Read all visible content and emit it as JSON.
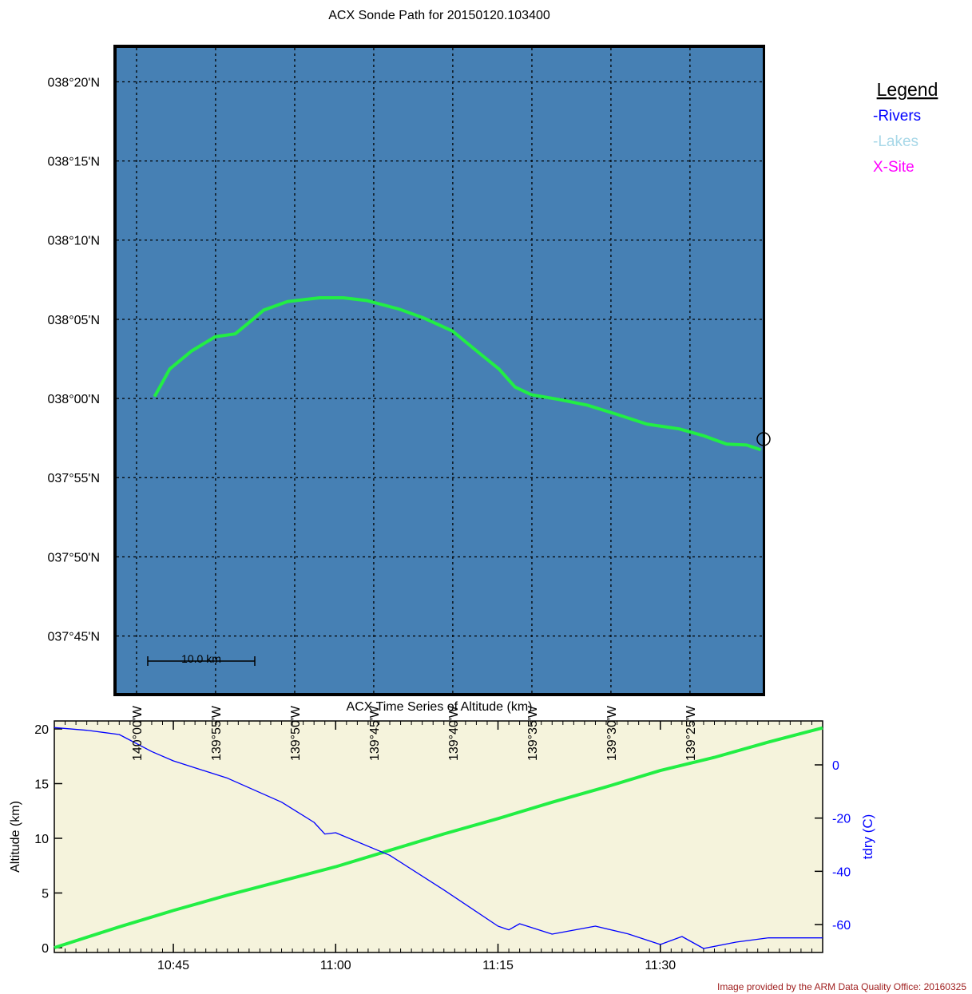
{
  "chart_data": [
    {
      "type": "map",
      "title": "ACX Sonde Path for 20150120.103400",
      "x": [
        -139.981,
        -139.965,
        -139.942,
        -139.917,
        -139.896,
        -139.879,
        -139.866,
        -139.841,
        -139.807,
        -139.782,
        -139.757,
        -139.723,
        -139.698,
        -139.667,
        -139.639,
        -139.618,
        -139.601,
        -139.584,
        -139.555,
        -139.525,
        -139.496,
        -139.462,
        -139.428,
        -139.403,
        -139.378,
        -139.357,
        -139.342
      ],
      "values": [
        38.002,
        38.031,
        38.05,
        38.065,
        38.068,
        38.082,
        38.093,
        38.102,
        38.106,
        38.106,
        38.103,
        38.094,
        38.085,
        38.071,
        38.048,
        38.031,
        38.012,
        38.004,
        37.999,
        37.993,
        37.984,
        37.973,
        37.968,
        37.961,
        37.952,
        37.951,
        37.946
      ],
      "color": "#22ee44",
      "background": "#4680b4",
      "grid": true,
      "xlim": [
        -140.021,
        -139.34
      ],
      "ylim": [
        37.69,
        38.369
      ],
      "xticks": [
        {
          "value": -140,
          "label": "140°00'W"
        },
        {
          "value": -139.9167,
          "label": "139°55'W"
        },
        {
          "value": -139.8333,
          "label": "139°50'W"
        },
        {
          "value": -139.75,
          "label": "139°45'W"
        },
        {
          "value": -139.6667,
          "label": "139°40'W"
        },
        {
          "value": -139.5833,
          "label": "139°35'W"
        },
        {
          "value": -139.5,
          "label": "139°30'W"
        },
        {
          "value": -139.4167,
          "label": "139°25'W"
        }
      ],
      "yticks": [
        {
          "value": 38.3333,
          "label": "038°20'N"
        },
        {
          "value": 38.25,
          "label": "038°15'N"
        },
        {
          "value": 38.1667,
          "label": "038°10'N"
        },
        {
          "value": 38.0833,
          "label": "038°05'N"
        },
        {
          "value": 38,
          "label": "038°00'N"
        },
        {
          "value": 37.9167,
          "label": "037°55'N"
        },
        {
          "value": 37.8333,
          "label": "037°50'N"
        },
        {
          "value": 37.75,
          "label": "037°45'N"
        }
      ],
      "scale_label": "10.0 km",
      "legend": {
        "title": "Legend",
        "items": [
          {
            "label": "-Rivers",
            "color": "#0000ff"
          },
          {
            "label": "-Lakes",
            "color": "#a8d8e8"
          },
          {
            "label": "X-Site",
            "color": "#ff00ff"
          }
        ]
      }
    },
    {
      "type": "line",
      "title": "ACX Time Series of  Altitude (km)",
      "ylabel": "Altitude (km)",
      "y2label": "tdry (C)",
      "background": "#f5f3dc",
      "xlim": [
        "10:34",
        "11:45"
      ],
      "xticks": [
        "10:45",
        "11:00",
        "11:15",
        "11:30"
      ],
      "ylim": [
        -0.44,
        20.73
      ],
      "yticks": [
        0,
        5,
        10,
        15,
        20
      ],
      "y2lim": [
        -70.5,
        16.5
      ],
      "y2ticks": [
        0,
        -20,
        -40,
        -60
      ],
      "y2color": "#0000ff",
      "series": [
        {
          "color": "#22ee44",
          "x": [
            "10:34",
            "10:40",
            "10:45",
            "10:50",
            "10:55",
            "11:00",
            "11:05",
            "11:10",
            "11:15",
            "11:20",
            "11:25",
            "11:30",
            "11:35",
            "11:40",
            "11:45"
          ],
          "values": [
            0,
            1.9,
            3.4,
            4.8,
            6.1,
            7.4,
            8.9,
            10.4,
            11.8,
            13.3,
            14.7,
            16.2,
            17.4,
            18.8,
            20.1
          ]
        },
        {
          "color": "#0000ff",
          "axis": "y2",
          "x": [
            "10:34",
            "10:37",
            "10:40",
            "10:43",
            "10:45",
            "10:50",
            "10:55",
            "10:58",
            "10:59",
            "11:00",
            "11:05",
            "11:10",
            "11:15",
            "11:16",
            "11:17",
            "11:20",
            "11:24",
            "11:27",
            "11:30",
            "11:32",
            "11:34",
            "11:37",
            "11:40",
            "11:45"
          ],
          "values": [
            14,
            13,
            11.4,
            5,
            1.5,
            -5,
            -14,
            -21.6,
            -26,
            -25.5,
            -34,
            -47,
            -60.6,
            -62,
            -59.7,
            -63.6,
            -60.6,
            -63.5,
            -67.5,
            -64.5,
            -69,
            -66.6,
            -65,
            -65
          ]
        }
      ]
    }
  ],
  "footer": "Image provided by the ARM Data Quality Office: 20160325"
}
